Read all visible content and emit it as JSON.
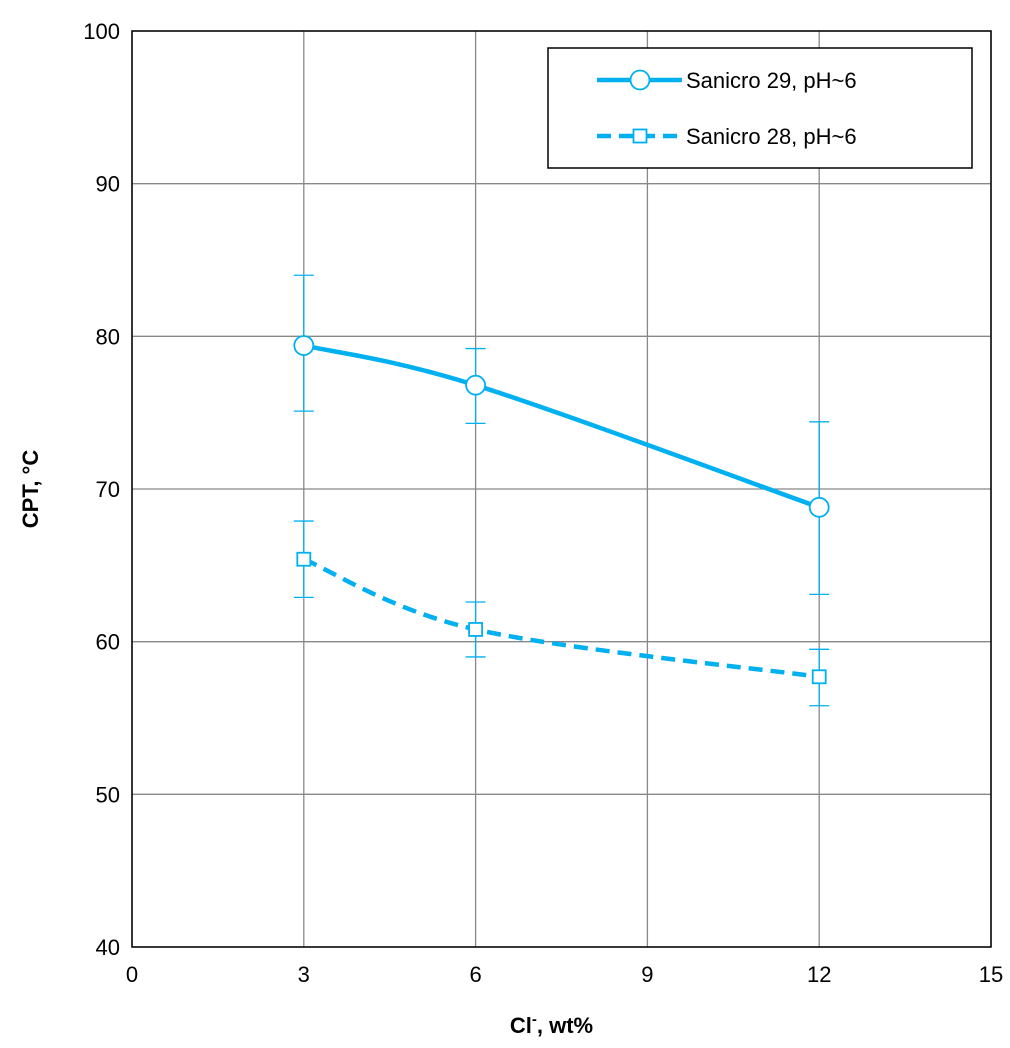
{
  "chart_data": {
    "type": "line",
    "title": "",
    "xlabel": {
      "main": "Cl",
      "sup": "-",
      "rest": ", wt%"
    },
    "ylabel": "CPT, °C",
    "xlim": [
      0,
      15
    ],
    "ylim": [
      40,
      100
    ],
    "xticks": [
      0,
      3,
      6,
      9,
      12,
      15
    ],
    "yticks": [
      40,
      50,
      60,
      70,
      80,
      90,
      100
    ],
    "grid": true,
    "legend_position": "top-right",
    "series": [
      {
        "name": "Sanicro 29, pH~6",
        "color": "#00b0f0",
        "line_style": "solid",
        "marker": "circle",
        "x": [
          3,
          6,
          12
        ],
        "y": [
          79.4,
          76.8,
          68.8
        ],
        "err_low": [
          75.1,
          74.3,
          63.1
        ],
        "err_high": [
          84.0,
          79.2,
          74.4
        ]
      },
      {
        "name": "Sanicro 28, pH~6",
        "color": "#00b0f0",
        "line_style": "dashed",
        "marker": "square",
        "x": [
          3,
          6,
          12
        ],
        "y": [
          65.4,
          60.8,
          57.7
        ],
        "err_low": [
          62.9,
          59.0,
          55.8
        ],
        "err_high": [
          67.9,
          62.6,
          59.5
        ]
      }
    ]
  }
}
